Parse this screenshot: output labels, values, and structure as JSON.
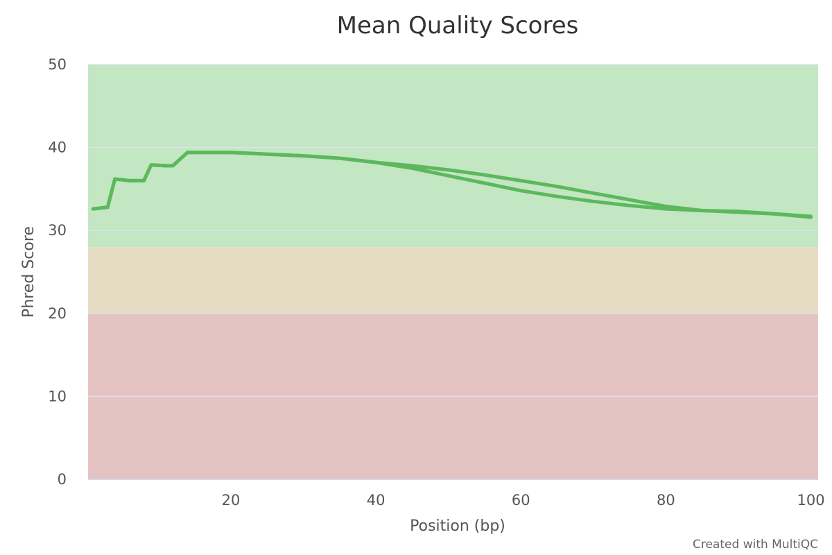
{
  "chart_data": {
    "type": "line",
    "title": "Mean Quality Scores",
    "xlabel": "Position (bp)",
    "ylabel": "Phred Score",
    "xlim": [
      0.3,
      101
    ],
    "ylim": [
      0,
      50
    ],
    "x_ticks": [
      20,
      40,
      60,
      80,
      100
    ],
    "y_ticks": [
      0,
      10,
      20,
      30,
      40,
      50
    ],
    "grid": true,
    "legend": "none",
    "bands": [
      {
        "from": 28,
        "to": 50,
        "color": "#c3e6c3"
      },
      {
        "from": 20,
        "to": 28,
        "color": "#e6dcc3"
      },
      {
        "from": 0,
        "to": 20,
        "color": "#e6c3c3"
      }
    ],
    "line_color": "#5cb85c",
    "series": [
      {
        "values": [
          [
            1,
            32.6
          ],
          [
            3,
            32.8
          ],
          [
            4,
            36.2
          ],
          [
            5,
            36.1
          ],
          [
            6,
            36.0
          ],
          [
            8,
            36.0
          ],
          [
            9,
            37.9
          ],
          [
            11,
            37.8
          ],
          [
            12,
            37.8
          ],
          [
            14,
            39.4
          ],
          [
            20,
            39.4
          ],
          [
            25,
            39.2
          ],
          [
            30,
            39.0
          ],
          [
            35,
            38.7
          ],
          [
            40,
            38.2
          ],
          [
            45,
            37.5
          ],
          [
            50,
            36.6
          ],
          [
            55,
            35.7
          ],
          [
            60,
            34.8
          ],
          [
            65,
            34.1
          ],
          [
            70,
            33.5
          ],
          [
            75,
            33.0
          ],
          [
            80,
            32.6
          ],
          [
            85,
            32.4
          ],
          [
            90,
            32.3
          ],
          [
            95,
            32.0
          ],
          [
            100,
            31.6
          ]
        ]
      },
      {
        "values": [
          [
            1,
            32.6
          ],
          [
            3,
            32.8
          ],
          [
            4,
            36.2
          ],
          [
            5,
            36.1
          ],
          [
            6,
            36.0
          ],
          [
            8,
            36.0
          ],
          [
            9,
            37.9
          ],
          [
            11,
            37.8
          ],
          [
            12,
            37.8
          ],
          [
            14,
            39.4
          ],
          [
            20,
            39.4
          ],
          [
            25,
            39.2
          ],
          [
            30,
            39.0
          ],
          [
            35,
            38.7
          ],
          [
            40,
            38.2
          ],
          [
            45,
            37.8
          ],
          [
            50,
            37.3
          ],
          [
            55,
            36.7
          ],
          [
            60,
            36.0
          ],
          [
            65,
            35.3
          ],
          [
            70,
            34.5
          ],
          [
            75,
            33.7
          ],
          [
            80,
            32.9
          ],
          [
            85,
            32.4
          ],
          [
            90,
            32.2
          ],
          [
            95,
            32.0
          ],
          [
            100,
            31.7
          ]
        ]
      }
    ]
  },
  "credits": "Created with MultiQC"
}
